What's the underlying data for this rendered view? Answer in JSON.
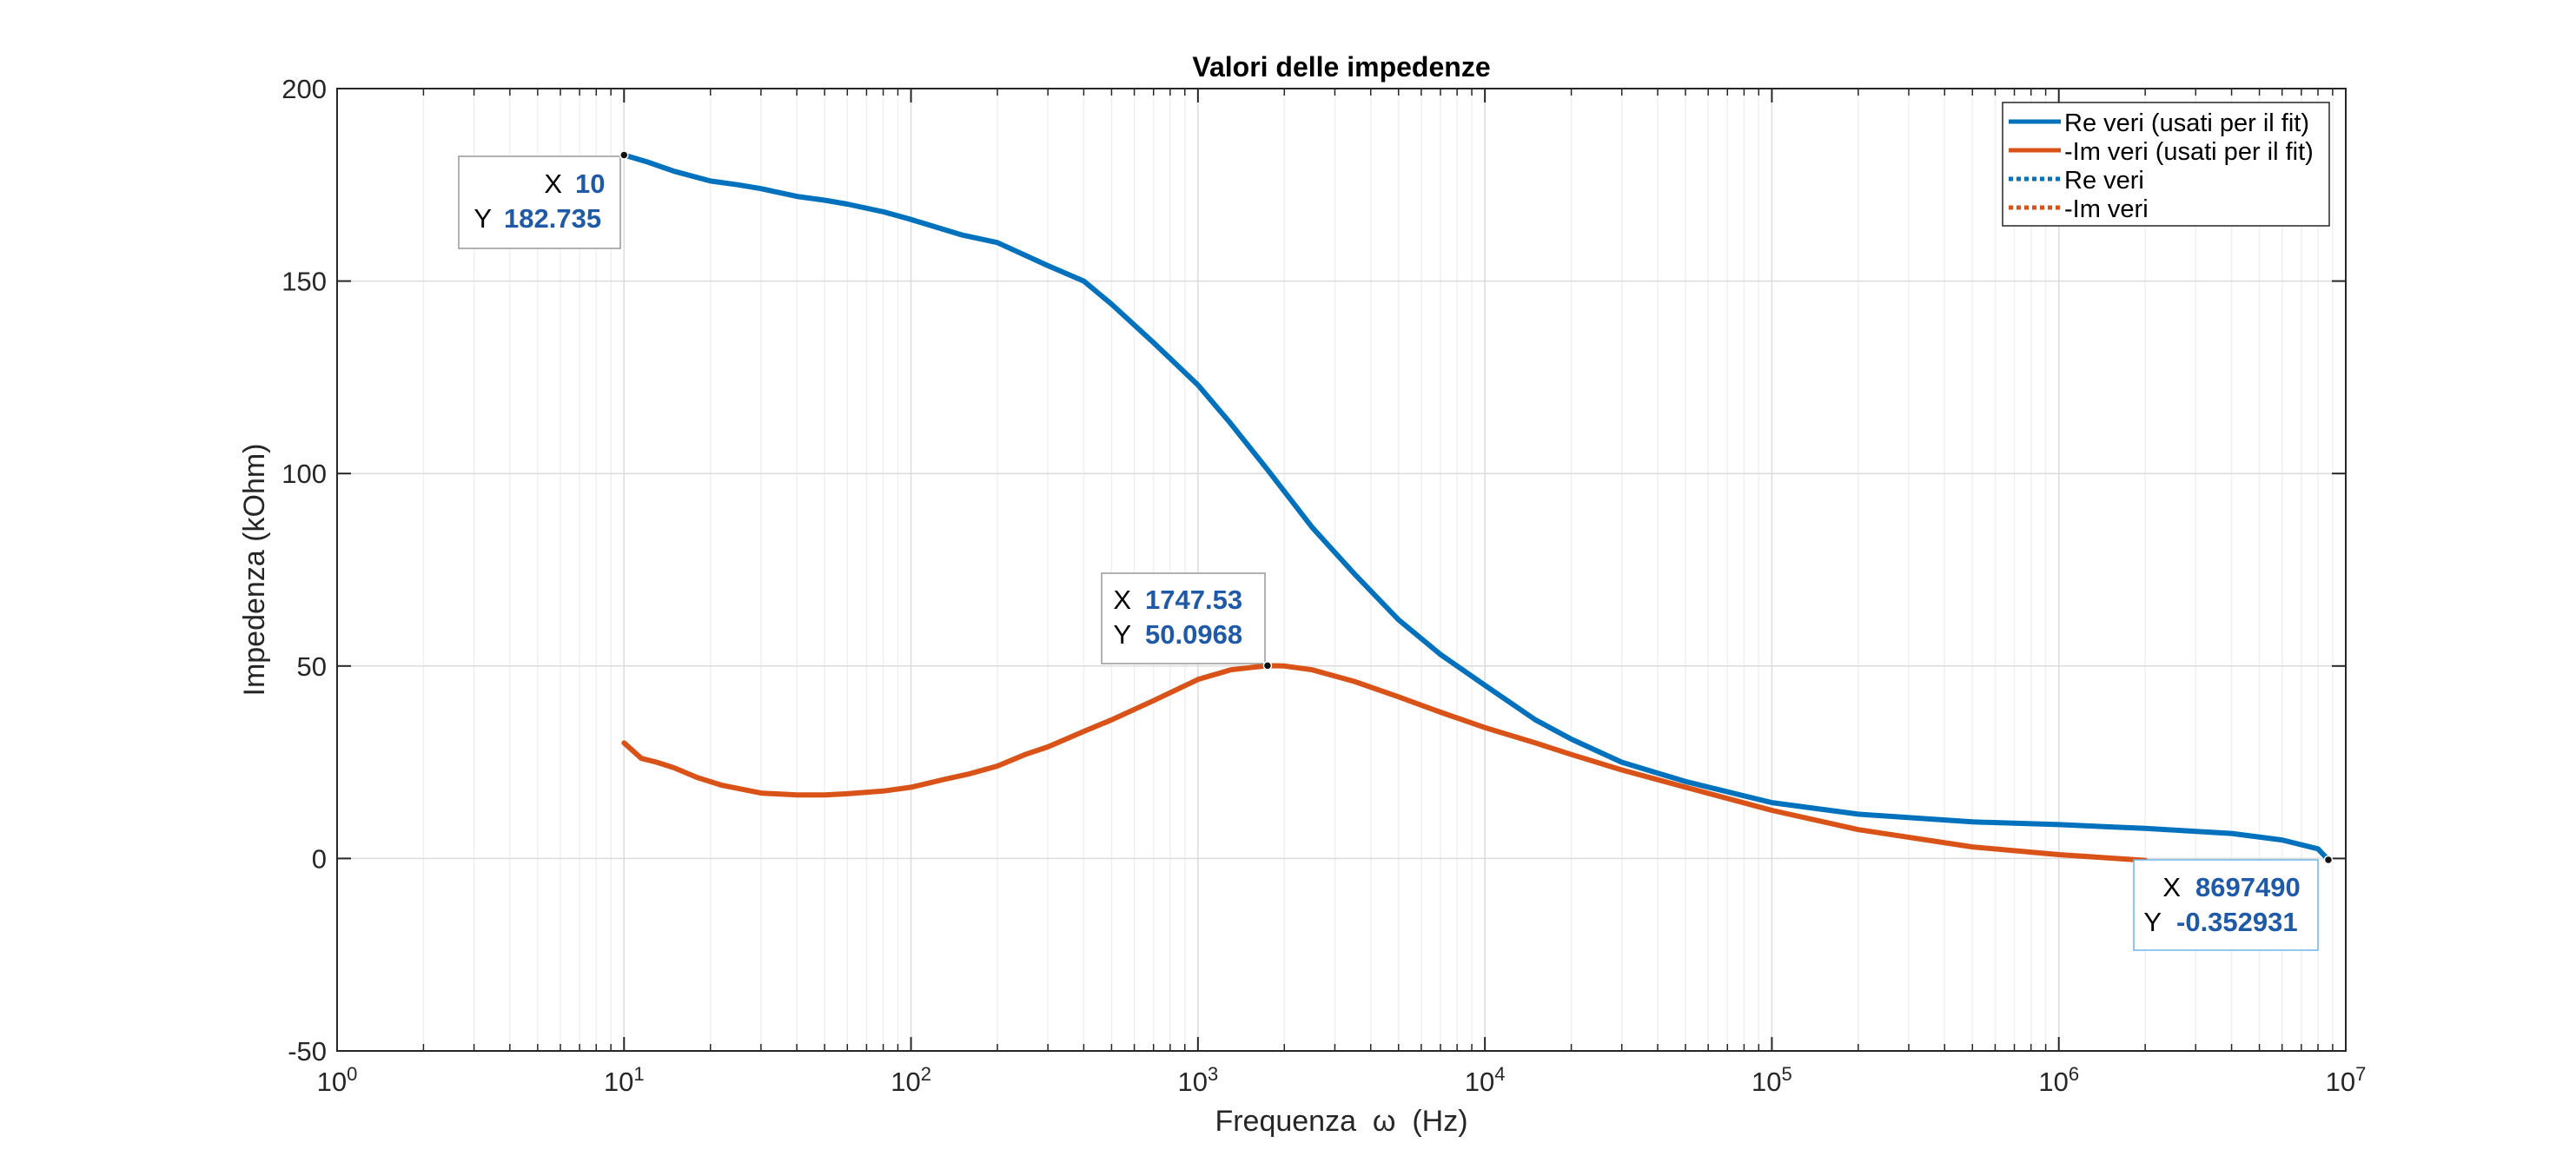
{
  "chart_data": {
    "type": "line",
    "title": "Valori delle impedenze",
    "xlabel": "Frequenza  ω  (Hz)",
    "ylabel": "Impedenza (kOhm)",
    "xscale": "log",
    "xlim": [
      1,
      10000000
    ],
    "ylim": [
      -50,
      200
    ],
    "x_ticks": [
      1,
      10,
      100,
      1000,
      10000,
      100000,
      1000000,
      10000000
    ],
    "x_tick_exponents": [
      "0",
      "1",
      "2",
      "3",
      "4",
      "5",
      "6",
      "7"
    ],
    "x_tick_base": "10",
    "y_ticks": [
      -50,
      0,
      50,
      100,
      150,
      200
    ],
    "y_tick_labels": [
      "-50",
      "0",
      "50",
      "100",
      "150",
      "200"
    ],
    "grid": true,
    "legend_position": "top-right",
    "colors": {
      "re": "#0072BD",
      "im": "#D95319",
      "datatip_text": "#1f5aa8",
      "datatip_border": "#999999"
    },
    "series": [
      {
        "name": "Re veri (usati per il fit)",
        "color": "#0072BD",
        "style": "solid",
        "x": [
          10,
          12,
          15,
          20,
          25,
          30,
          40,
          50,
          60,
          80,
          100,
          150,
          200,
          300,
          400,
          500,
          700,
          1000,
          1300,
          1747.53,
          2500,
          3500,
          5000,
          7000,
          10000,
          15000,
          20000,
          30000,
          50000,
          100000,
          200000,
          500000,
          1000000,
          2000000,
          4000000,
          6000000,
          8000000,
          8697490
        ],
        "y": [
          182.735,
          181,
          178.5,
          176,
          175,
          174,
          172,
          171,
          170,
          168,
          166,
          162,
          160,
          154,
          150,
          144,
          134,
          123,
          113,
          101,
          86,
          74,
          62,
          53,
          45,
          36,
          31,
          25,
          20,
          14.5,
          11.5,
          9.5,
          8.8,
          7.8,
          6.5,
          4.8,
          2.5,
          -0.352931
        ]
      },
      {
        "name": "-Im veri (usati per il fit)",
        "color": "#D95319",
        "style": "solid",
        "x": [
          10,
          11.5,
          13,
          15,
          18,
          22,
          30,
          40,
          50,
          60,
          80,
          100,
          130,
          160,
          200,
          250,
          300,
          400,
          500,
          700,
          1000,
          1300,
          1747.53,
          2000,
          2500,
          3500,
          5000,
          7000,
          10000,
          15000,
          20000,
          30000,
          50000,
          100000,
          200000,
          500000,
          1000000,
          2000000
        ],
        "y": [
          30,
          26,
          25,
          23.5,
          21,
          19,
          17,
          16.5,
          16.5,
          16.8,
          17.5,
          18.5,
          20.5,
          22,
          24,
          27,
          29,
          33,
          36,
          41,
          46.5,
          49,
          50.0968,
          50,
          49,
          46,
          42,
          38,
          34,
          30,
          27,
          23,
          18.5,
          12.5,
          7.5,
          3,
          1,
          -0.5
        ]
      },
      {
        "name": "Re veri",
        "color": "#0072BD",
        "style": "dotted",
        "x": [],
        "y": []
      },
      {
        "name": "-Im veri",
        "color": "#D95319",
        "style": "dotted",
        "x": [],
        "y": []
      }
    ],
    "datatips": [
      {
        "x_label": "X",
        "y_label": "Y",
        "x_text": "10",
        "y_text": "182.735",
        "x": 10,
        "y": 182.735
      },
      {
        "x_label": "X",
        "y_label": "Y",
        "x_text": "1747.53",
        "y_text": "50.0968",
        "x": 1747.53,
        "y": 50.0968
      },
      {
        "x_label": "X",
        "y_label": "Y",
        "x_text": "8697490",
        "y_text": "-0.352931",
        "x": 8697490,
        "y": -0.352931
      }
    ]
  }
}
